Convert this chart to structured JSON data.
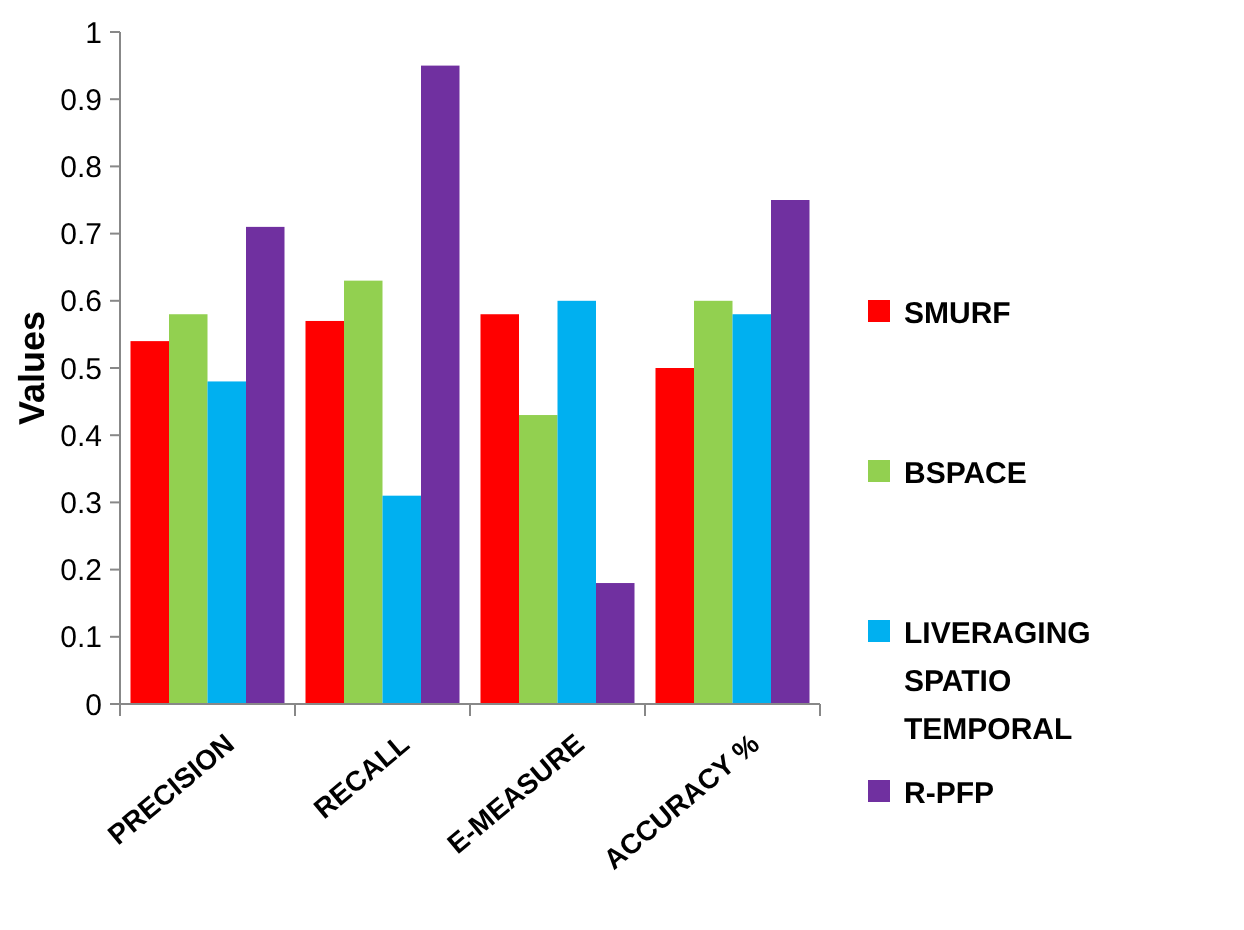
{
  "chart_data": {
    "type": "bar",
    "ylabel": "Values",
    "categories": [
      "PRECISION",
      "RECALL",
      "E-MEASURE",
      "ACCURACY %"
    ],
    "series": [
      {
        "name": "SMURF",
        "color": "#ff0000",
        "values": [
          0.54,
          0.57,
          0.58,
          0.5
        ]
      },
      {
        "name": "BSPACE",
        "color": "#92d050",
        "values": [
          0.58,
          0.63,
          0.43,
          0.6
        ]
      },
      {
        "name": "LIVERAGING SPATIO TEMPORAL",
        "color": "#00b0f0",
        "values": [
          0.48,
          0.31,
          0.6,
          0.58
        ]
      },
      {
        "name": "R-PFP",
        "color": "#7030a0",
        "values": [
          0.71,
          0.95,
          0.18,
          0.75
        ]
      }
    ],
    "ylim": [
      0,
      1
    ],
    "yticks": [
      0,
      0.1,
      0.2,
      0.3,
      0.4,
      0.5,
      0.6,
      0.7,
      0.8,
      0.9,
      1
    ],
    "grid": false,
    "legend": "right"
  }
}
